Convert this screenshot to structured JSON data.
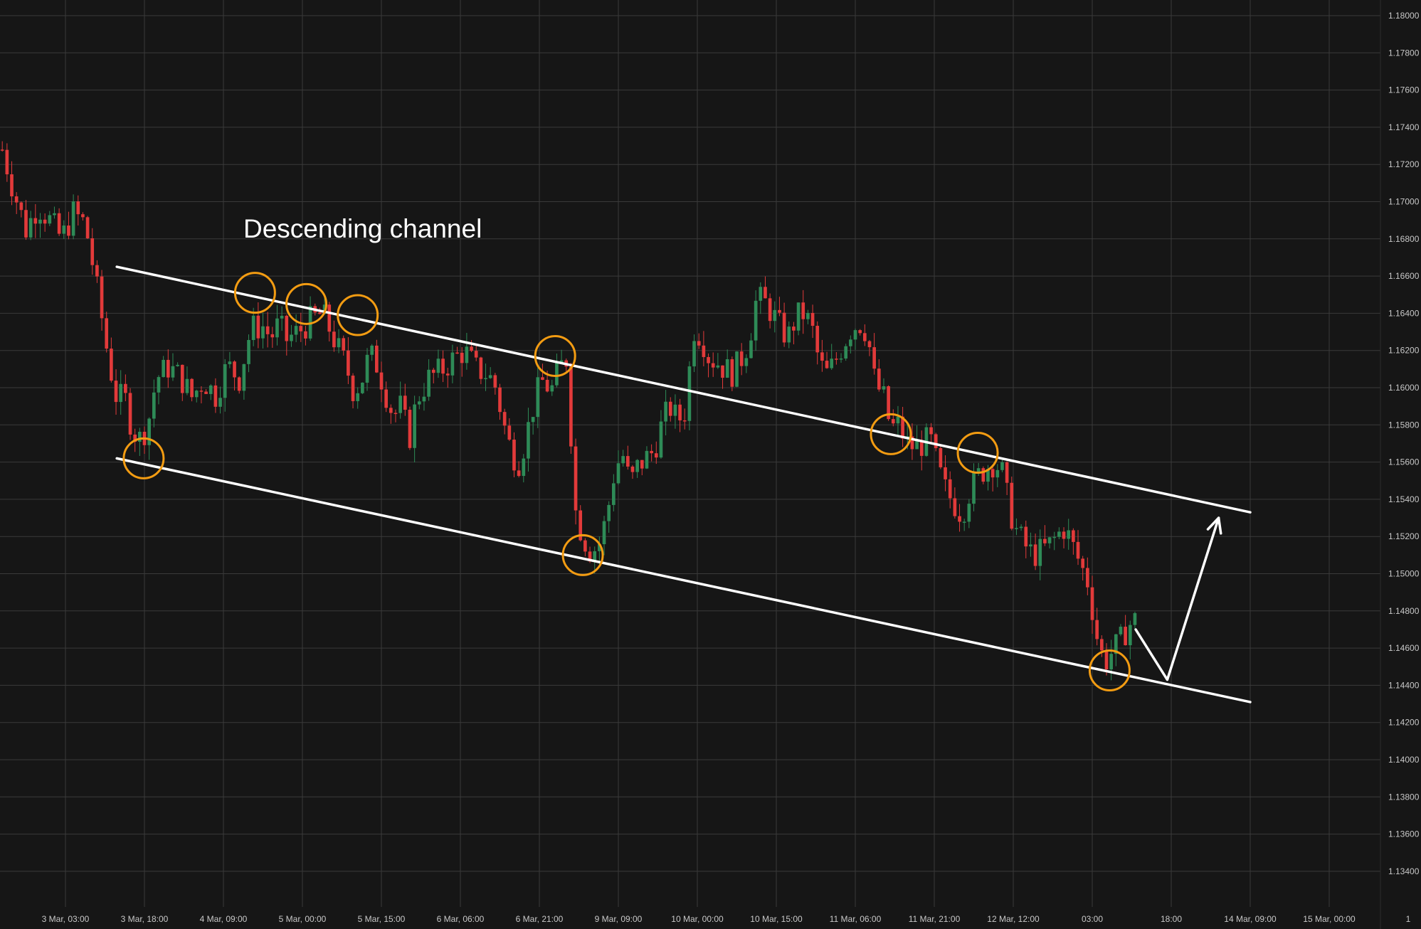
{
  "colors": {
    "background": "#161616",
    "grid": "#3a3a3a",
    "up_candle": "#2e8b57",
    "down_candle": "#e23a3a",
    "channel_line": "#ffffff",
    "highlight_circle": "#f39c12",
    "projection_arrow": "#ffffff",
    "axis_text": "#c8c8c8"
  },
  "chart_data": {
    "type": "candlestick",
    "title": "Descending channel",
    "xlabel": "",
    "ylabel": "",
    "grid": true,
    "x_tick_labels": [
      "3 Mar, 03:00",
      "3 Mar, 18:00",
      "4 Mar, 09:00",
      "5 Mar, 00:00",
      "5 Mar, 15:00",
      "6 Mar, 06:00",
      "6 Mar, 21:00",
      "9 Mar, 09:00",
      "10 Mar, 00:00",
      "10 Mar, 15:00",
      "11 Mar, 06:00",
      "11 Mar, 21:00",
      "12 Mar, 12:00",
      "03:00",
      "18:00",
      "14 Mar, 09:00",
      "15 Mar, 00:00",
      "1"
    ],
    "y_tick_labels": [
      "1.18000",
      "1.17800",
      "1.17600",
      "1.17400",
      "1.17200",
      "1.17000",
      "1.16800",
      "1.16600",
      "1.16400",
      "1.16200",
      "1.16000",
      "1.15800",
      "1.15600",
      "1.15400",
      "1.15200",
      "1.15000",
      "1.14800",
      "1.14600",
      "1.14400",
      "1.14200",
      "1.14000",
      "1.13800",
      "1.13600",
      "1.13400"
    ],
    "ylim": [
      1.1325,
      1.1805
    ],
    "xlim": [
      -0.75,
      17.5
    ],
    "price_path": [
      [
        -0.8,
        1.1728
      ],
      [
        -0.65,
        1.1705
      ],
      [
        -0.5,
        1.1685
      ],
      [
        -0.35,
        1.1698
      ],
      [
        -0.2,
        1.169
      ],
      [
        -0.05,
        1.168
      ],
      [
        0.1,
        1.1694
      ],
      [
        0.25,
        1.1688
      ],
      [
        0.35,
        1.1665
      ],
      [
        0.45,
        1.164
      ],
      [
        0.55,
        1.1614
      ],
      [
        0.65,
        1.1594
      ],
      [
        0.75,
        1.1595
      ],
      [
        0.85,
        1.1577
      ],
      [
        0.95,
        1.1572
      ],
      [
        1.05,
        1.1582
      ],
      [
        1.15,
        1.1605
      ],
      [
        1.3,
        1.1611
      ],
      [
        1.45,
        1.1606
      ],
      [
        1.6,
        1.1595
      ],
      [
        1.75,
        1.1604
      ],
      [
        1.9,
        1.1596
      ],
      [
        2.05,
        1.1612
      ],
      [
        2.2,
        1.1605
      ],
      [
        2.35,
        1.1632
      ],
      [
        2.5,
        1.1633
      ],
      [
        2.6,
        1.1627
      ],
      [
        2.7,
        1.1634
      ],
      [
        2.8,
        1.1626
      ],
      [
        2.95,
        1.163
      ],
      [
        3.1,
        1.1636
      ],
      [
        3.25,
        1.164
      ],
      [
        3.35,
        1.1631
      ],
      [
        3.45,
        1.1621
      ],
      [
        3.55,
        1.1612
      ],
      [
        3.65,
        1.1598
      ],
      [
        3.75,
        1.1604
      ],
      [
        3.85,
        1.1618
      ],
      [
        3.95,
        1.1612
      ],
      [
        4.05,
        1.1598
      ],
      [
        4.15,
        1.1585
      ],
      [
        4.25,
        1.159
      ],
      [
        4.35,
        1.1572
      ],
      [
        4.45,
        1.1594
      ],
      [
        4.6,
        1.1605
      ],
      [
        4.75,
        1.1609
      ],
      [
        4.9,
        1.1615
      ],
      [
        5.05,
        1.162
      ],
      [
        5.2,
        1.161
      ],
      [
        5.35,
        1.1607
      ],
      [
        5.45,
        1.16
      ],
      [
        5.55,
        1.158
      ],
      [
        5.65,
        1.1565
      ],
      [
        5.75,
        1.156
      ],
      [
        5.85,
        1.1577
      ],
      [
        5.95,
        1.1595
      ],
      [
        6.05,
        1.1604
      ],
      [
        6.15,
        1.1598
      ],
      [
        6.25,
        1.161
      ],
      [
        6.35,
        1.1616
      ],
      [
        6.45,
        1.1535
      ],
      [
        6.55,
        1.152
      ],
      [
        6.65,
        1.1512
      ],
      [
        6.75,
        1.1515
      ],
      [
        6.85,
        1.153
      ],
      [
        6.95,
        1.1555
      ],
      [
        7.05,
        1.1565
      ],
      [
        7.15,
        1.1548
      ],
      [
        7.25,
        1.1558
      ],
      [
        7.35,
        1.1562
      ],
      [
        7.45,
        1.1566
      ],
      [
        7.55,
        1.158
      ],
      [
        7.65,
        1.159
      ],
      [
        7.75,
        1.1582
      ],
      [
        7.85,
        1.1588
      ],
      [
        7.95,
        1.1632
      ],
      [
        8.05,
        1.1628
      ],
      [
        8.15,
        1.1616
      ],
      [
        8.25,
        1.1614
      ],
      [
        8.35,
        1.161
      ],
      [
        8.45,
        1.1608
      ],
      [
        8.55,
        1.1615
      ],
      [
        8.65,
        1.1625
      ],
      [
        8.75,
        1.1648
      ],
      [
        8.85,
        1.1646
      ],
      [
        8.95,
        1.164
      ],
      [
        9.05,
        1.1632
      ],
      [
        9.15,
        1.1627
      ],
      [
        9.25,
        1.1638
      ],
      [
        9.35,
        1.164
      ],
      [
        9.45,
        1.1632
      ],
      [
        9.55,
        1.1612
      ],
      [
        9.65,
        1.1607
      ],
      [
        9.75,
        1.1615
      ],
      [
        9.85,
        1.1624
      ],
      [
        9.95,
        1.1632
      ],
      [
        10.05,
        1.1635
      ],
      [
        10.15,
        1.163
      ],
      [
        10.25,
        1.1602
      ],
      [
        10.35,
        1.1596
      ],
      [
        10.45,
        1.1578
      ],
      [
        10.55,
        1.158
      ],
      [
        10.65,
        1.157
      ],
      [
        10.75,
        1.1568
      ],
      [
        10.85,
        1.157
      ],
      [
        10.95,
        1.1572
      ],
      [
        11.05,
        1.1556
      ],
      [
        11.15,
        1.1544
      ],
      [
        11.25,
        1.1538
      ],
      [
        11.35,
        1.1532
      ],
      [
        11.45,
        1.1545
      ],
      [
        11.55,
        1.1552
      ],
      [
        11.65,
        1.1557
      ],
      [
        11.75,
        1.156
      ],
      [
        11.85,
        1.1556
      ],
      [
        11.95,
        1.1535
      ],
      [
        12.05,
        1.1522
      ],
      [
        12.15,
        1.1515
      ],
      [
        12.25,
        1.151
      ],
      [
        12.35,
        1.1512
      ],
      [
        12.45,
        1.1515
      ],
      [
        12.55,
        1.152
      ],
      [
        12.65,
        1.1525
      ],
      [
        12.75,
        1.1515
      ],
      [
        12.85,
        1.1505
      ],
      [
        12.95,
        1.1495
      ],
      [
        13.05,
        1.1468
      ],
      [
        13.15,
        1.1452
      ],
      [
        13.25,
        1.1458
      ],
      [
        13.35,
        1.1463
      ],
      [
        13.45,
        1.1472
      ],
      [
        13.55,
        1.1475
      ]
    ],
    "channel": {
      "upper": {
        "start": [
          0.65,
          1.1665
        ],
        "end": [
          15.0,
          1.1533
        ]
      },
      "lower": {
        "start": [
          0.65,
          1.1562
        ],
        "end": [
          15.0,
          1.1431
        ]
      }
    },
    "touch_points": [
      [
        0.99,
        1.1562
      ],
      [
        2.4,
        1.1651
      ],
      [
        3.05,
        1.1645
      ],
      [
        3.7,
        1.1639
      ],
      [
        6.2,
        1.1617
      ],
      [
        6.55,
        1.151
      ],
      [
        10.45,
        1.1575
      ],
      [
        11.55,
        1.1565
      ],
      [
        13.22,
        1.1448
      ]
    ],
    "projection": [
      [
        13.55,
        1.147
      ],
      [
        13.95,
        1.1443
      ],
      [
        14.6,
        1.153
      ]
    ]
  }
}
